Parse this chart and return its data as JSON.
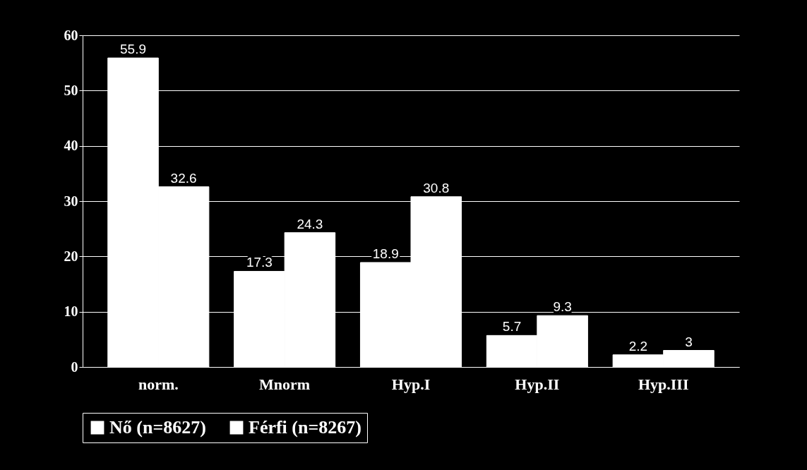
{
  "chart_data": {
    "type": "bar",
    "categories": [
      "norm.",
      "Mnorm",
      "Hyp.I",
      "Hyp.II",
      "Hyp.III"
    ],
    "series": [
      {
        "name": "Nő (n=8627)",
        "color": "#ffffff",
        "values": [
          55.9,
          17.3,
          18.9,
          5.7,
          2.2
        ]
      },
      {
        "name": "Férfi (n=8267)",
        "color": "#ffffff",
        "values": [
          32.6,
          24.3,
          30.8,
          9.3,
          3
        ]
      }
    ],
    "ylim": [
      0,
      60
    ],
    "yticks": [
      0,
      10,
      20,
      30,
      40,
      50,
      60
    ],
    "grid": "y",
    "legend": "bottom",
    "data_labels": true
  }
}
